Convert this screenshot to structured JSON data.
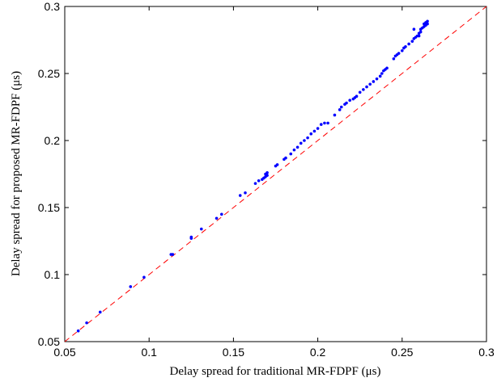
{
  "chart_data": {
    "type": "scatter",
    "title": "",
    "xlabel": "Delay spread for traditional MR-FDPF (μs)",
    "ylabel": "Delay spread for proposed MR-FDPF (μs)",
    "xlim": [
      0.05,
      0.3
    ],
    "ylim": [
      0.05,
      0.3
    ],
    "x_ticks": [
      "0.05",
      "0.1",
      "0.15",
      "0.2",
      "0.25",
      "0.3"
    ],
    "y_ticks": [
      "0.05",
      "0.1",
      "0.15",
      "0.2",
      "0.25",
      "0.3"
    ],
    "x_tick_values": [
      0.05,
      0.1,
      0.15,
      0.2,
      0.25,
      0.3
    ],
    "y_tick_values": [
      0.05,
      0.1,
      0.15,
      0.2,
      0.25,
      0.3
    ],
    "grid": false,
    "series": [
      {
        "marker_color": "#0000ff",
        "points": [
          [
            0.058,
            0.058
          ],
          [
            0.063,
            0.064
          ],
          [
            0.071,
            0.072
          ],
          [
            0.089,
            0.091
          ],
          [
            0.097,
            0.098
          ],
          [
            0.113,
            0.115
          ],
          [
            0.114,
            0.115
          ],
          [
            0.125,
            0.127
          ],
          [
            0.125,
            0.128
          ],
          [
            0.131,
            0.134
          ],
          [
            0.14,
            0.142
          ],
          [
            0.143,
            0.145
          ],
          [
            0.154,
            0.159
          ],
          [
            0.157,
            0.161
          ],
          [
            0.163,
            0.168
          ],
          [
            0.165,
            0.17
          ],
          [
            0.167,
            0.171
          ],
          [
            0.168,
            0.172
          ],
          [
            0.169,
            0.173
          ],
          [
            0.169,
            0.175
          ],
          [
            0.17,
            0.174
          ],
          [
            0.17,
            0.176
          ],
          [
            0.175,
            0.181
          ],
          [
            0.176,
            0.182
          ],
          [
            0.18,
            0.186
          ],
          [
            0.181,
            0.187
          ],
          [
            0.184,
            0.19
          ],
          [
            0.186,
            0.193
          ],
          [
            0.188,
            0.195
          ],
          [
            0.19,
            0.198
          ],
          [
            0.192,
            0.2
          ],
          [
            0.194,
            0.202
          ],
          [
            0.196,
            0.205
          ],
          [
            0.198,
            0.207
          ],
          [
            0.2,
            0.209
          ],
          [
            0.202,
            0.212
          ],
          [
            0.204,
            0.213
          ],
          [
            0.206,
            0.213
          ],
          [
            0.21,
            0.219
          ],
          [
            0.213,
            0.223
          ],
          [
            0.214,
            0.225
          ],
          [
            0.216,
            0.227
          ],
          [
            0.217,
            0.228
          ],
          [
            0.219,
            0.23
          ],
          [
            0.221,
            0.231
          ],
          [
            0.222,
            0.232
          ],
          [
            0.223,
            0.233
          ],
          [
            0.225,
            0.236
          ],
          [
            0.227,
            0.238
          ],
          [
            0.229,
            0.24
          ],
          [
            0.231,
            0.242
          ],
          [
            0.233,
            0.244
          ],
          [
            0.235,
            0.246
          ],
          [
            0.237,
            0.248
          ],
          [
            0.238,
            0.25
          ],
          [
            0.239,
            0.252
          ],
          [
            0.24,
            0.253
          ],
          [
            0.241,
            0.254
          ],
          [
            0.245,
            0.261
          ],
          [
            0.246,
            0.263
          ],
          [
            0.247,
            0.264
          ],
          [
            0.248,
            0.265
          ],
          [
            0.25,
            0.267
          ],
          [
            0.251,
            0.269
          ],
          [
            0.252,
            0.27
          ],
          [
            0.254,
            0.272
          ],
          [
            0.256,
            0.274
          ],
          [
            0.257,
            0.276
          ],
          [
            0.258,
            0.277
          ],
          [
            0.259,
            0.278
          ],
          [
            0.26,
            0.278
          ],
          [
            0.26,
            0.28
          ],
          [
            0.261,
            0.281
          ],
          [
            0.261,
            0.283
          ],
          [
            0.262,
            0.284
          ],
          [
            0.263,
            0.285
          ],
          [
            0.263,
            0.287
          ],
          [
            0.264,
            0.286
          ],
          [
            0.264,
            0.288
          ],
          [
            0.265,
            0.287
          ],
          [
            0.265,
            0.289
          ],
          [
            0.257,
            0.283
          ]
        ]
      },
      {
        "line_color": "#ff0000",
        "line_style": "dashed",
        "points": [
          [
            0.05,
            0.05
          ],
          [
            0.3,
            0.3
          ]
        ]
      }
    ]
  }
}
